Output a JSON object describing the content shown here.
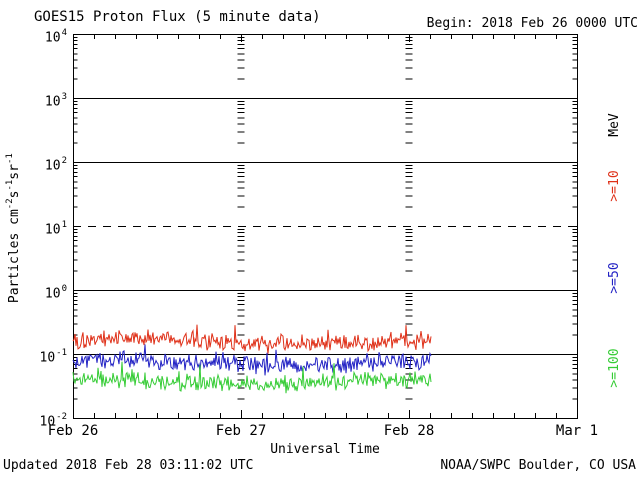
{
  "header": {
    "title": "GOES15 Proton Flux (5 minute data)",
    "begin": "Begin: 2018 Feb 26 0000 UTC"
  },
  "footer": {
    "updated": "Updated 2018 Feb 28 03:11:02 UTC",
    "source": "NOAA/SWPC Boulder, CO USA"
  },
  "chart_data": {
    "type": "line",
    "title": "GOES15 Proton Flux (5 minute data)",
    "xlabel": "Universal Time",
    "ylabel": "Particles cm-2 s-1 sr-1",
    "ylabel_parts": [
      {
        "t": "Particles cm"
      },
      {
        "sup": "-2"
      },
      {
        "t": "s"
      },
      {
        "sup": "-1"
      },
      {
        "t": "sr"
      },
      {
        "sup": "-1"
      }
    ],
    "y_scale": "log",
    "ylim": [
      0.01,
      10000
    ],
    "y_tick_exponents": [
      4,
      3,
      2,
      1,
      0,
      -1,
      -2
    ],
    "x_ticks": [
      "Feb 26",
      "Feb 27",
      "Feb 28",
      "Mar 1"
    ],
    "x_tick_positions_days": [
      0,
      1,
      2,
      3
    ],
    "x_minor_tick_hours": 3,
    "x_range": [
      "2018 Feb 26 0000 UTC",
      "2018 Mar 1 0000 UTC"
    ],
    "grid": {
      "solid_hlines_at_flux": [
        1000,
        100,
        1,
        0.1
      ],
      "dashed_hline_at_flux": 10,
      "day_boundary_tick_columns_days": [
        1,
        2
      ]
    },
    "legend": {
      "position": "right",
      "title": "MeV",
      "entries": [
        {
          "label": ">=10",
          "color": "#df3018"
        },
        {
          "label": ">=50",
          "color": "#2222c4"
        },
        {
          "label": ">=100",
          "color": "#35cc35"
        }
      ]
    },
    "series": [
      {
        "name": "Proton flux >=10 MeV",
        "label": ">=10",
        "color": "#df3018",
        "data_start_day": 0,
        "data_end_day": 2.13,
        "flux_typical": 0.15,
        "flux_range": [
          0.1,
          0.45
        ],
        "log10_mean": -0.8,
        "log10_range": [
          -1.0,
          -0.36
        ],
        "noise_halfrange_log10": 0.17,
        "spike_prob": 0.035,
        "spike_max_log10": 0.33,
        "seed": 101
      },
      {
        "name": "Proton flux >=50 MeV",
        "label": ">=50",
        "color": "#2222c4",
        "data_start_day": 0,
        "data_end_day": 2.13,
        "flux_typical": 0.07,
        "flux_range": [
          0.042,
          0.14
        ],
        "log10_mean": -1.14,
        "log10_range": [
          -1.38,
          -0.85
        ],
        "noise_halfrange_log10": 0.16,
        "spike_prob": 0.03,
        "spike_max_log10": 0.26,
        "seed": 202
      },
      {
        "name": "Proton flux >=100 MeV",
        "label": ">=100",
        "color": "#35cc35",
        "data_start_day": 0,
        "data_end_day": 2.13,
        "flux_typical": 0.038,
        "flux_range": [
          0.021,
          0.075
        ],
        "log10_mean": -1.44,
        "log10_range": [
          -1.68,
          -1.12
        ],
        "noise_halfrange_log10": 0.16,
        "spike_prob": 0.03,
        "spike_max_log10": 0.29,
        "seed": 303
      }
    ]
  }
}
